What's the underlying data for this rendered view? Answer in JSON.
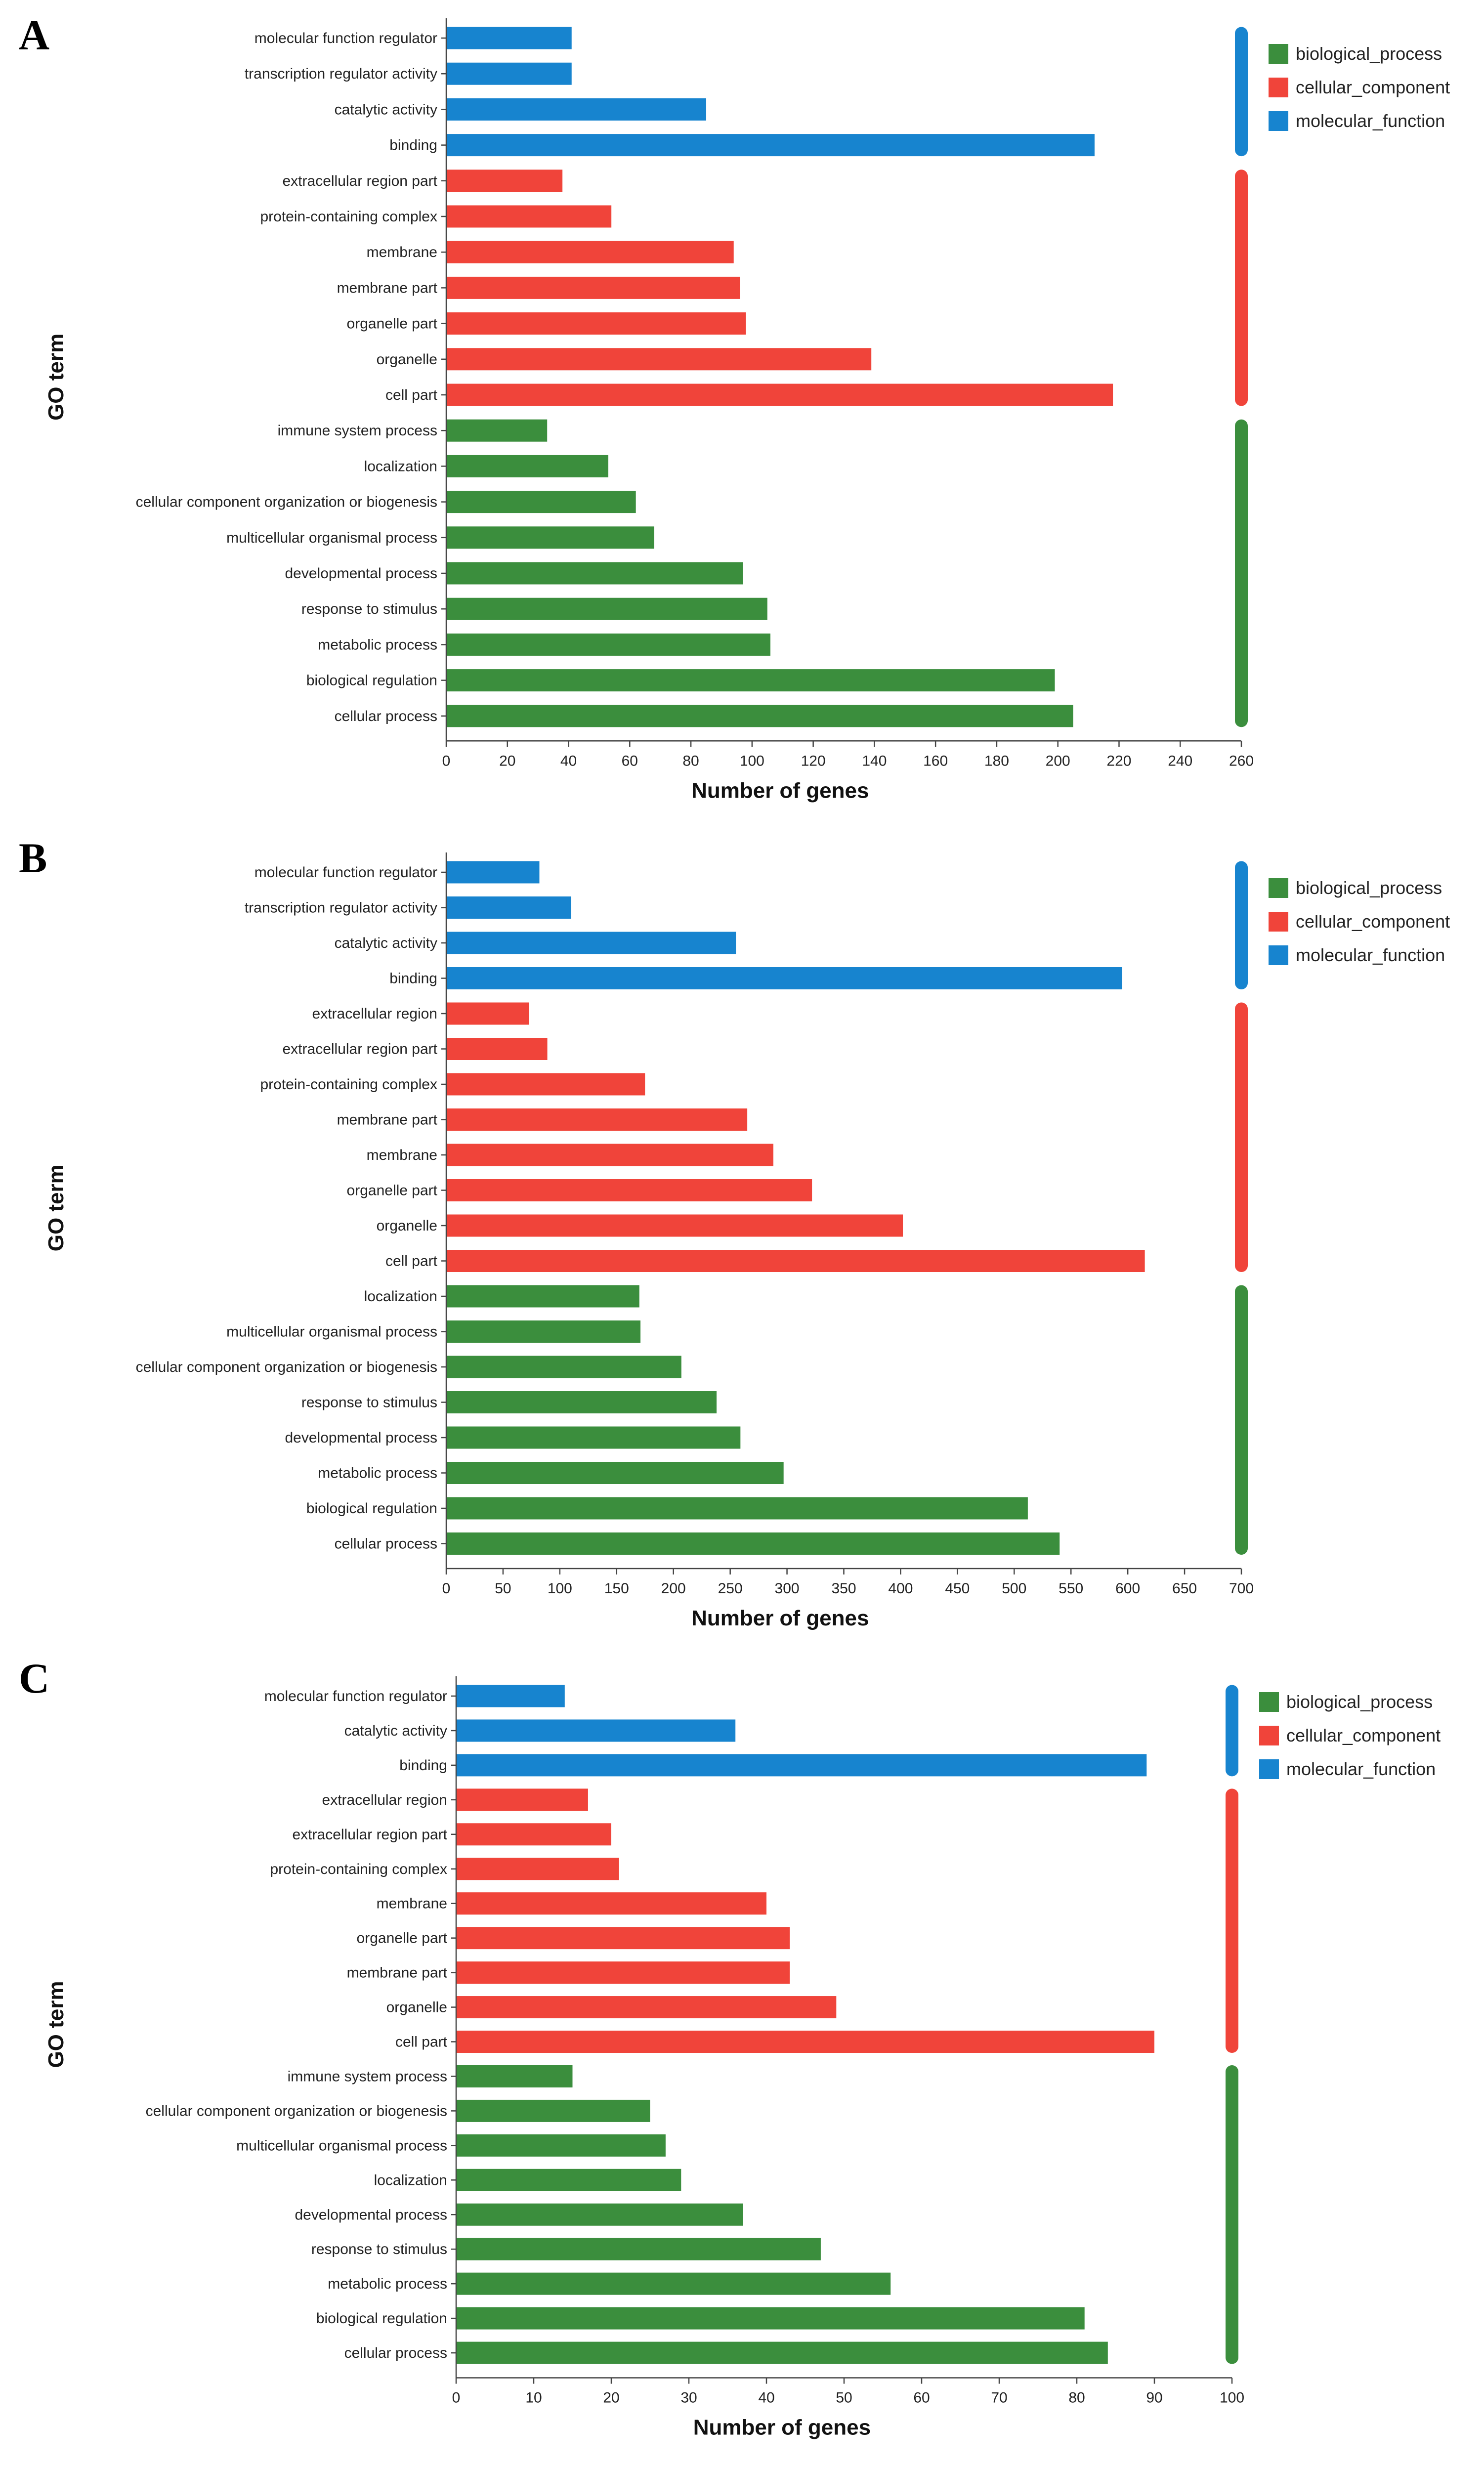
{
  "colors": {
    "biological_process": "#3b8e3d",
    "cellular_component": "#f0443a",
    "molecular_function": "#1784cf"
  },
  "chart_data": [
    {
      "panel": "A",
      "type": "bar",
      "orientation": "horizontal",
      "xlabel": "Number of genes",
      "ylabel": "GO term",
      "xlim": [
        0,
        260
      ],
      "xticks": [
        0,
        20,
        40,
        60,
        80,
        100,
        120,
        140,
        160,
        180,
        200,
        220,
        240,
        260
      ],
      "legend": [
        "biological_process",
        "cellular_component",
        "molecular_function"
      ],
      "legend_position": "top-right",
      "categories": [
        {
          "label": "molecular function regulator",
          "value": 41,
          "group": "molecular_function"
        },
        {
          "label": "transcription regulator activity",
          "value": 41,
          "group": "molecular_function"
        },
        {
          "label": "catalytic activity",
          "value": 85,
          "group": "molecular_function"
        },
        {
          "label": "binding",
          "value": 212,
          "group": "molecular_function"
        },
        {
          "label": "extracellular region part",
          "value": 38,
          "group": "cellular_component"
        },
        {
          "label": "protein-containing complex",
          "value": 54,
          "group": "cellular_component"
        },
        {
          "label": "membrane",
          "value": 94,
          "group": "cellular_component"
        },
        {
          "label": "membrane part",
          "value": 96,
          "group": "cellular_component"
        },
        {
          "label": "organelle part",
          "value": 98,
          "group": "cellular_component"
        },
        {
          "label": "organelle",
          "value": 139,
          "group": "cellular_component"
        },
        {
          "label": "cell part",
          "value": 218,
          "group": "cellular_component"
        },
        {
          "label": "immune system process",
          "value": 33,
          "group": "biological_process"
        },
        {
          "label": "localization",
          "value": 53,
          "group": "biological_process"
        },
        {
          "label": "cellular component organization or biogenesis",
          "value": 62,
          "group": "biological_process"
        },
        {
          "label": "multicellular organismal process",
          "value": 68,
          "group": "biological_process"
        },
        {
          "label": "developmental process",
          "value": 97,
          "group": "biological_process"
        },
        {
          "label": "response to stimulus",
          "value": 105,
          "group": "biological_process"
        },
        {
          "label": "metabolic process",
          "value": 106,
          "group": "biological_process"
        },
        {
          "label": "biological regulation",
          "value": 199,
          "group": "biological_process"
        },
        {
          "label": "cellular process",
          "value": 205,
          "group": "biological_process"
        }
      ]
    },
    {
      "panel": "B",
      "type": "bar",
      "orientation": "horizontal",
      "xlabel": "Number of genes",
      "ylabel": "GO term",
      "xlim": [
        0,
        700
      ],
      "xticks": [
        0,
        50,
        100,
        150,
        200,
        250,
        300,
        350,
        400,
        450,
        500,
        550,
        600,
        650,
        700
      ],
      "legend": [
        "biological_process",
        "cellular_component",
        "molecular_function"
      ],
      "legend_position": "top-right",
      "categories": [
        {
          "label": "molecular function regulator",
          "value": 82,
          "group": "molecular_function"
        },
        {
          "label": "transcription regulator activity",
          "value": 110,
          "group": "molecular_function"
        },
        {
          "label": "catalytic activity",
          "value": 255,
          "group": "molecular_function"
        },
        {
          "label": "binding",
          "value": 595,
          "group": "molecular_function"
        },
        {
          "label": "extracellular region",
          "value": 73,
          "group": "cellular_component"
        },
        {
          "label": "extracellular region part",
          "value": 89,
          "group": "cellular_component"
        },
        {
          "label": "protein-containing complex",
          "value": 175,
          "group": "cellular_component"
        },
        {
          "label": "membrane part",
          "value": 265,
          "group": "cellular_component"
        },
        {
          "label": "membrane",
          "value": 288,
          "group": "cellular_component"
        },
        {
          "label": "organelle part",
          "value": 322,
          "group": "cellular_component"
        },
        {
          "label": "organelle",
          "value": 402,
          "group": "cellular_component"
        },
        {
          "label": "cell part",
          "value": 615,
          "group": "cellular_component"
        },
        {
          "label": "localization",
          "value": 170,
          "group": "biological_process"
        },
        {
          "label": "multicellular organismal process",
          "value": 171,
          "group": "biological_process"
        },
        {
          "label": "cellular component organization or biogenesis",
          "value": 207,
          "group": "biological_process"
        },
        {
          "label": "response to stimulus",
          "value": 238,
          "group": "biological_process"
        },
        {
          "label": "developmental process",
          "value": 259,
          "group": "biological_process"
        },
        {
          "label": "metabolic process",
          "value": 297,
          "group": "biological_process"
        },
        {
          "label": "biological regulation",
          "value": 512,
          "group": "biological_process"
        },
        {
          "label": "cellular process",
          "value": 540,
          "group": "biological_process"
        }
      ]
    },
    {
      "panel": "C",
      "type": "bar",
      "orientation": "horizontal",
      "xlabel": "Number of genes",
      "ylabel": "GO term",
      "xlim": [
        0,
        100
      ],
      "xticks": [
        0,
        10,
        20,
        30,
        40,
        50,
        60,
        70,
        80,
        90,
        100
      ],
      "legend": [
        "biological_process",
        "cellular_component",
        "molecular_function"
      ],
      "legend_position": "top-right",
      "categories": [
        {
          "label": "molecular function regulator",
          "value": 14,
          "group": "molecular_function"
        },
        {
          "label": "catalytic activity",
          "value": 36,
          "group": "molecular_function"
        },
        {
          "label": "binding",
          "value": 89,
          "group": "molecular_function"
        },
        {
          "label": "extracellular region",
          "value": 17,
          "group": "cellular_component"
        },
        {
          "label": "extracellular region part",
          "value": 20,
          "group": "cellular_component"
        },
        {
          "label": "protein-containing complex",
          "value": 21,
          "group": "cellular_component"
        },
        {
          "label": "membrane",
          "value": 40,
          "group": "cellular_component"
        },
        {
          "label": "organelle part",
          "value": 43,
          "group": "cellular_component"
        },
        {
          "label": "membrane part",
          "value": 43,
          "group": "cellular_component"
        },
        {
          "label": "organelle",
          "value": 49,
          "group": "cellular_component"
        },
        {
          "label": "cell part",
          "value": 90,
          "group": "cellular_component"
        },
        {
          "label": "immune system process",
          "value": 15,
          "group": "biological_process"
        },
        {
          "label": "cellular component organization or biogenesis",
          "value": 25,
          "group": "biological_process"
        },
        {
          "label": "multicellular organismal process",
          "value": 27,
          "group": "biological_process"
        },
        {
          "label": "localization",
          "value": 29,
          "group": "biological_process"
        },
        {
          "label": "developmental process",
          "value": 37,
          "group": "biological_process"
        },
        {
          "label": "response to stimulus",
          "value": 47,
          "group": "biological_process"
        },
        {
          "label": "metabolic process",
          "value": 56,
          "group": "biological_process"
        },
        {
          "label": "biological regulation",
          "value": 81,
          "group": "biological_process"
        },
        {
          "label": "cellular process",
          "value": 84,
          "group": "biological_process"
        }
      ]
    }
  ]
}
